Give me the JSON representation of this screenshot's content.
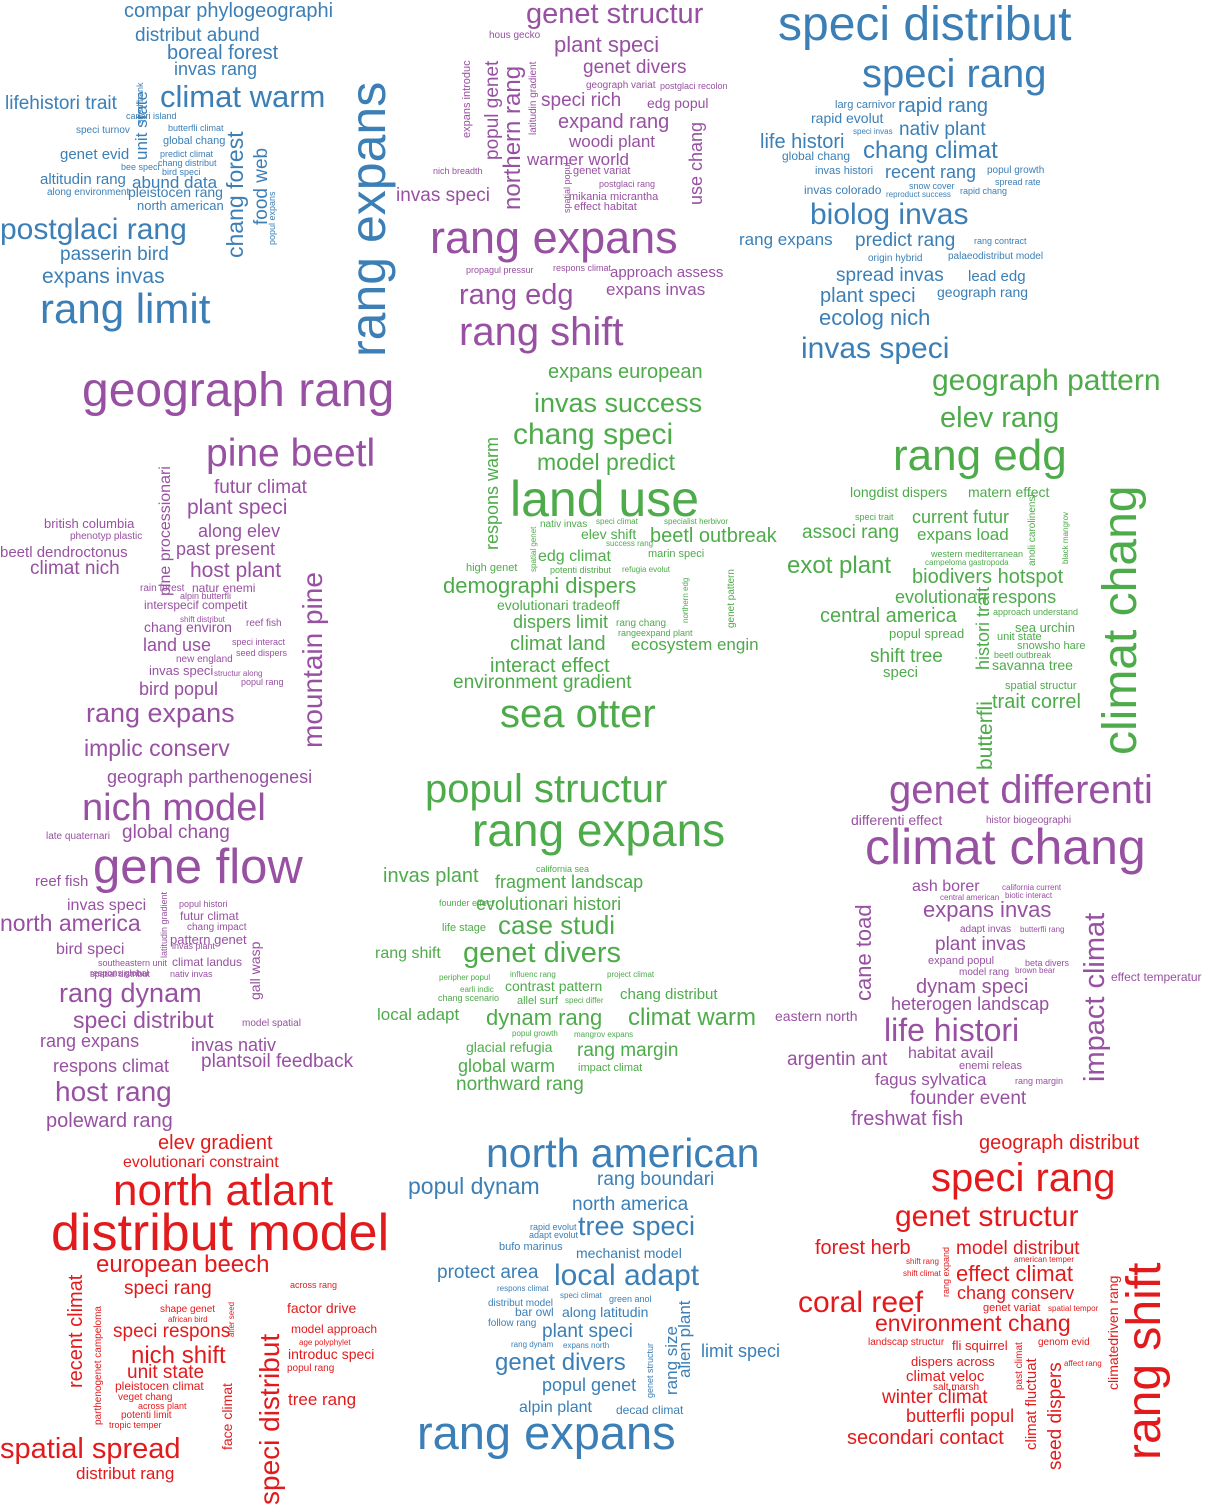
{
  "palette": {
    "blue": "#3b7fb6",
    "purple": "#9850a2",
    "green": "#4dab4a",
    "red": "#e31a1c"
  },
  "panels": [
    {
      "id": "top-left",
      "color": "blue",
      "words": [
        "compar phylogeographi",
        "distribut abund",
        "boreal forest",
        "invas rang",
        "lifehistori trait",
        "climat warm",
        "unit state",
        "seed bank",
        "canari island",
        "butterfli climat",
        "speci turnov",
        "global chang",
        "genet evid",
        "predict climat",
        "chang distribut",
        "bee speci",
        "bird speci",
        "altitudin rang",
        "abund data",
        "chang forest",
        "food web",
        "along environment",
        "pleistocen rang",
        "north american",
        "popul expans",
        "postglaci rang",
        "passerin bird",
        "expans invas",
        "rang limit",
        "rang expans"
      ]
    },
    {
      "id": "top-middle",
      "color": "purple",
      "words": [
        "genet structur",
        "hous gecko",
        "plant speci",
        "expans introduc",
        "popul genet",
        "northern rang",
        "latitudin gradient",
        "genet divers",
        "geograph variat",
        "postglaci recolon",
        "speci rich",
        "edg popul",
        "expand rang",
        "woodi plant",
        "use chang",
        "warmer world",
        "nich breadth",
        "genet variat",
        "postglaci rang",
        "mikania micrantha",
        "spatial popul",
        "invas speci",
        "effect habitat",
        "rang expans",
        "propagul pressur",
        "respons climat",
        "approach assess",
        "rang edg",
        "expans invas",
        "rang shift"
      ]
    },
    {
      "id": "top-right",
      "color": "blue",
      "words": [
        "speci distribut",
        "speci rang",
        "larg carnivor",
        "rapid rang",
        "rapid evolut",
        "nativ plant",
        "life histori",
        "speci invas",
        "global chang",
        "chang climat",
        "invas histori",
        "recent rang",
        "popul growth",
        "snow cover",
        "spread rate",
        "invas colorado",
        "reproduct success",
        "rapid chang",
        "biolog invas",
        "rang expans",
        "predict rang",
        "rang contract",
        "origin hybrid",
        "palaeodistribut model",
        "spread invas",
        "lead edg",
        "plant speci",
        "geograph rang",
        "ecolog nich",
        "invas speci"
      ]
    },
    {
      "id": "middle-left",
      "color": "purple",
      "words": [
        "geograph rang",
        "pine beetl",
        "pine processionari",
        "futur climat",
        "plant speci",
        "british columbia",
        "along elev",
        "phenotyp plastic",
        "past present",
        "beetl dendroctonus",
        "mountain pine",
        "climat nich",
        "host plant",
        "rain forest",
        "natur enemi",
        "alpin butterfli",
        "interspecif competit",
        "shift distribut",
        "reef fish",
        "chang environ",
        "land use",
        "speci interact",
        "seed dispers",
        "new england",
        "invas speci",
        "structur along",
        "popul rang",
        "bird popul",
        "rang expans",
        "implic conserv"
      ]
    },
    {
      "id": "center",
      "color": "green",
      "words": [
        "expans european",
        "invas success",
        "respons warm",
        "chang speci",
        "model predict",
        "land use",
        "nativ invas",
        "speci climat",
        "specialist herbivor",
        "spatial genet",
        "elev shift",
        "beetl outbreak",
        "success rang",
        "edg climat",
        "marin speci",
        "high genet",
        "potenti distribut",
        "refugia evolut",
        "northern edg",
        "genet pattern",
        "demographi dispers",
        "evolutionari tradeoff",
        "dispers limit",
        "rang chang",
        "rangeexpand plant",
        "climat land",
        "ecosystem engin",
        "interact effect",
        "environment gradient",
        "sea otter"
      ]
    },
    {
      "id": "middle-right",
      "color": "green",
      "words": [
        "geograph pattern",
        "elev rang",
        "rang edg",
        "climat chang",
        "longdist dispers",
        "matern effect",
        "speci trait",
        "current futur",
        "associ rang",
        "expans load",
        "anoli carolinensi",
        "black mangrov",
        "western mediterranean",
        "campeloma gastropoda",
        "exot plant",
        "biodivers hotspot",
        "evolutionari respons",
        "approach understand",
        "central america",
        "sea urchin",
        "popul spread",
        "unit state",
        "snowsho hare",
        "shift tree",
        "beetl outbreak",
        "speci",
        "histori trait",
        "savanna tree",
        "butterfli",
        "spatial structur",
        "trait correl"
      ]
    },
    {
      "id": "lower-left",
      "color": "purple",
      "words": [
        "geograph parthenogenesi",
        "nich model",
        "late quaternari",
        "global chang",
        "gene flow",
        "reef fish",
        "invas speci",
        "popul histori",
        "latitudin gradient",
        "futur climat",
        "north america",
        "chang impact",
        "gall wasp",
        "pattern genet",
        "bird speci",
        "invas plant",
        "southeastern unit",
        "spatial distribut",
        "climat landus",
        "respons global",
        "nativ invas",
        "rang dynam",
        "speci distribut",
        "model spatial",
        "rang expans",
        "invas nativ",
        "respons climat",
        "plantsoil feedback",
        "host rang",
        "poleward rang"
      ]
    },
    {
      "id": "lower-center",
      "color": "green",
      "words": [
        "popul structur",
        "rang expans",
        "california sea",
        "invas plant",
        "fragment landscap",
        "founder effect",
        "evolutionari histori",
        "life stage",
        "case studi",
        "rang shift",
        "genet divers",
        "peripher popul",
        "influenc rang",
        "project climat",
        "earli indic",
        "contrast pattern",
        "chang distribut",
        "chang scenario",
        "allel surf",
        "speci differ",
        "local adapt",
        "dynam rang",
        "climat warm",
        "popul growth",
        "mangrov expans",
        "glacial refugia",
        "rang margin",
        "global warm",
        "impact climat",
        "northward rang"
      ]
    },
    {
      "id": "lower-right",
      "color": "purple",
      "words": [
        "genet differenti",
        "differenti effect",
        "histor biogeographi",
        "climat chang",
        "cane toad",
        "ash borer",
        "california current",
        "central american",
        "biotic interact",
        "expans invas",
        "impact climat",
        "adapt invas",
        "butterfli rang",
        "plant invas",
        "expand popul",
        "beta divers",
        "model rang",
        "brown bear",
        "effect temperatur",
        "dynam speci",
        "heterogen landscap",
        "eastern north",
        "life histori",
        "habitat avail",
        "argentin ant",
        "enemi releas",
        "fagus sylvatica",
        "rang margin",
        "founder event",
        "freshwat fish"
      ]
    },
    {
      "id": "bottom-left",
      "color": "red",
      "words": [
        "elev gradient",
        "evolutionari constraint",
        "north atlant",
        "distribut model",
        "european beech",
        "recent climat",
        "speci rang",
        "across rang",
        "parthenogenet campeloma",
        "shape genet",
        "african bird",
        "alter seed",
        "factor drive",
        "speci respons",
        "model approach",
        "age polyphylet",
        "nich shift",
        "introduc speci",
        "popul rang",
        "unit state",
        "pleistocen climat",
        "veget chang",
        "across plant",
        "potenti limit",
        "tropic temper",
        "face climat",
        "speci distribut",
        "tree rang",
        "spatial spread",
        "distribut rang"
      ]
    },
    {
      "id": "bottom-center",
      "color": "blue",
      "words": [
        "north american",
        "rang boundari",
        "popul dynam",
        "north america",
        "tree speci",
        "rapid evolut",
        "adapt evolut",
        "bufo marinus",
        "mechanist model",
        "protect area",
        "local adapt",
        "respons climat",
        "speci climat",
        "green anol",
        "distribut model",
        "bar owl",
        "along latitudin",
        "alien plant",
        "follow rang",
        "plant speci",
        "rang size",
        "limit speci",
        "rang dynam",
        "expans north",
        "genet divers",
        "genet structur",
        "popul genet",
        "alpin plant",
        "decad climat",
        "rang expans"
      ]
    },
    {
      "id": "bottom-right",
      "color": "red",
      "words": [
        "geograph distribut",
        "speci rang",
        "genet structur",
        "forest herb",
        "model distribut",
        "shift rang",
        "american temper",
        "rang expand",
        "shift climat",
        "effect climat",
        "chang conserv",
        "climatedriven rang",
        "coral reef",
        "genet variat",
        "spatial tempor",
        "environment chang",
        "landscap structur",
        "fli squirrel",
        "genom evid",
        "dispers across",
        "affect rang",
        "past climat",
        "climat veloc",
        "salt marsh",
        "climat fluctuat",
        "winter climat",
        "butterfli popul",
        "seed dispers",
        "secondari contact",
        "rang shift"
      ]
    }
  ]
}
